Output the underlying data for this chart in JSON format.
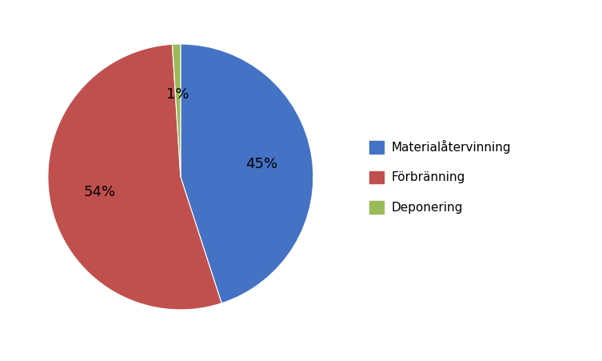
{
  "labels": [
    "Materialåtervinning",
    "Förbränning",
    "Deponering"
  ],
  "values": [
    45,
    54,
    1
  ],
  "colors": [
    "#4472C4",
    "#C0504D",
    "#9BBB59"
  ],
  "label_texts": [
    "45%",
    "54%",
    "1%"
  ],
  "background_color": "#ffffff",
  "legend_fontsize": 11,
  "autopct_fontsize": 13,
  "startangle": 90
}
